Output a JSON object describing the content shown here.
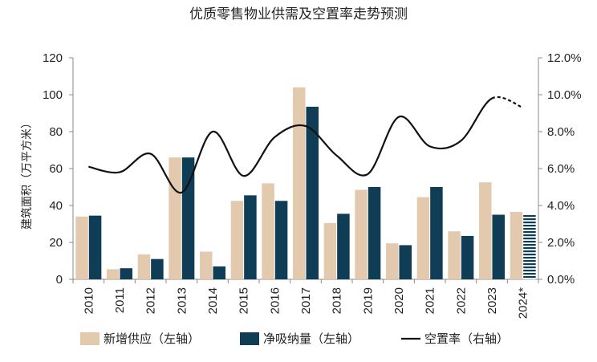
{
  "chart_data": {
    "type": "bar",
    "title": "优质零售物业供需及空置率走势预测",
    "categories": [
      "2010",
      "2011",
      "2012",
      "2013",
      "2014",
      "2015",
      "2016",
      "2017",
      "2018",
      "2019",
      "2020",
      "2021",
      "2022",
      "2023",
      "2024*"
    ],
    "ylabel": "建筑面积（万平方米）",
    "ylim": [
      0,
      120
    ],
    "yticks": [
      "0",
      "20",
      "40",
      "60",
      "80",
      "100",
      "120"
    ],
    "y2lim": [
      0,
      0.12
    ],
    "y2ticks": [
      "0.0%",
      "2.0%",
      "4.0%",
      "6.0%",
      "8.0%",
      "10.0%",
      "12.0%"
    ],
    "forecast_category": "2024*",
    "series": [
      {
        "name": "新增供应（左轴）",
        "kind": "bar",
        "color": "#E3C9AE",
        "values": [
          34,
          5.5,
          13.5,
          66,
          15,
          42.5,
          52,
          104,
          30.5,
          48.5,
          19.5,
          44.5,
          26,
          52.5,
          36.5
        ]
      },
      {
        "name": "净吸纳量（左轴）",
        "kind": "bar",
        "color": "#0F3D55",
        "values": [
          34.5,
          6,
          11,
          66,
          7,
          45.5,
          42.5,
          93.5,
          35.5,
          50,
          18.5,
          50,
          23.5,
          35,
          35
        ]
      },
      {
        "name": "空置率（右轴）",
        "kind": "line",
        "color": "#111111",
        "axis": "right",
        "values": [
          0.061,
          0.058,
          0.068,
          0.047,
          0.08,
          0.056,
          0.077,
          0.083,
          0.067,
          0.057,
          0.088,
          0.072,
          0.075,
          0.098,
          0.093
        ]
      }
    ],
    "grid": false,
    "legend_position": "bottom"
  }
}
